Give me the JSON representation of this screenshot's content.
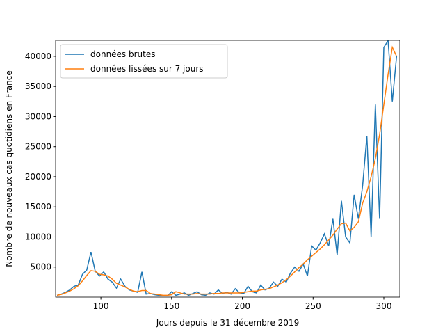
{
  "chart_data": {
    "type": "line",
    "xlabel": "Jours depuis le 31 décembre 2019",
    "ylabel": "Nombre de nouveaux cas quotidiens en France",
    "x": [
      69,
      72,
      75,
      78,
      81,
      84,
      87,
      90,
      93,
      96,
      99,
      102,
      105,
      108,
      111,
      114,
      117,
      120,
      123,
      126,
      129,
      132,
      135,
      138,
      141,
      144,
      147,
      150,
      153,
      156,
      159,
      162,
      165,
      168,
      171,
      174,
      177,
      180,
      183,
      186,
      189,
      192,
      195,
      198,
      201,
      204,
      207,
      210,
      213,
      216,
      219,
      222,
      225,
      228,
      231,
      234,
      237,
      240,
      243,
      246,
      249,
      252,
      255,
      258,
      261,
      264,
      267,
      270,
      273,
      276,
      279,
      282,
      285,
      288,
      291,
      294,
      297,
      300,
      303,
      306,
      309
    ],
    "series": [
      {
        "name": "données brutes",
        "color": "#1f77b4",
        "values": [
          300,
          500,
          800,
          1200,
          1800,
          2000,
          3800,
          4500,
          7500,
          4300,
          3500,
          4200,
          3000,
          2500,
          1500,
          3000,
          1800,
          1200,
          1000,
          800,
          4200,
          500,
          600,
          400,
          300,
          200,
          200,
          900,
          300,
          500,
          700,
          300,
          600,
          900,
          400,
          300,
          700,
          500,
          1200,
          600,
          800,
          500,
          1400,
          700,
          600,
          1800,
          900,
          700,
          2000,
          1200,
          1500,
          2500,
          1800,
          3000,
          2500,
          4000,
          5000,
          4300,
          5500,
          3500,
          8500,
          7800,
          9000,
          10500,
          8500,
          13000,
          7000,
          16000,
          10000,
          9000,
          17000,
          13000,
          18500,
          26800,
          10000,
          32000,
          13000,
          41500,
          42600,
          32500,
          40000
        ]
      },
      {
        "name": "données lissées sur 7 jours",
        "color": "#ff7f0e",
        "values": [
          300,
          450,
          700,
          1000,
          1400,
          1900,
          2700,
          3600,
          4400,
          4300,
          3800,
          3700,
          3500,
          3000,
          2300,
          2000,
          1700,
          1300,
          1000,
          900,
          1100,
          1100,
          600,
          500,
          400,
          300,
          300,
          400,
          900,
          700,
          500,
          500,
          500,
          600,
          500,
          500,
          500,
          600,
          600,
          700,
          700,
          700,
          700,
          700,
          800,
          900,
          1000,
          1000,
          1200,
          1300,
          1400,
          1700,
          2000,
          2400,
          2900,
          3500,
          4200,
          4900,
          5500,
          6200,
          6800,
          7400,
          8000,
          8700,
          9500,
          10300,
          11300,
          12200,
          12300,
          11000,
          11600,
          12500,
          15600,
          17500,
          20000,
          23000,
          27000,
          32000,
          37000,
          41500,
          40000
        ]
      }
    ],
    "xlim": [
      68,
      311.3
    ],
    "ylim": [
      0,
      42650
    ],
    "xticks": [
      100,
      150,
      200,
      250,
      300
    ],
    "yticks": [
      5000,
      10000,
      15000,
      20000,
      25000,
      30000,
      35000,
      40000
    ],
    "legend": "upper left"
  }
}
